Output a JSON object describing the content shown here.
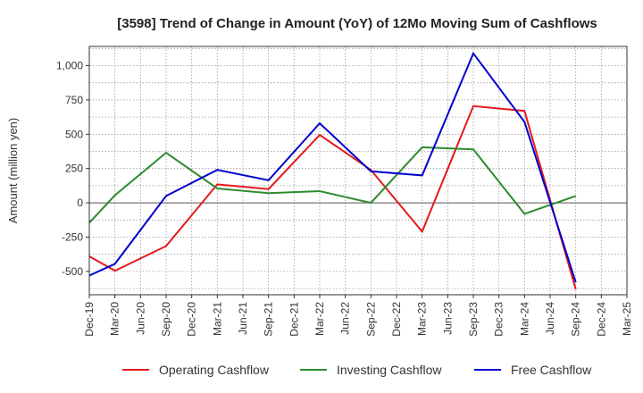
{
  "chart_data": {
    "type": "line",
    "title": "[3598]  Trend of Change in Amount (YoY) of 12Mo Moving Sum of Cashflows",
    "xlabel": "",
    "ylabel": "Amount (million yen)",
    "ylim": [
      -670,
      1140
    ],
    "yticks": [
      -500,
      -250,
      0,
      250,
      500,
      750,
      1000
    ],
    "ytick_labels": [
      "-500",
      "-250",
      "0",
      "250",
      "500",
      "750",
      "1,000"
    ],
    "categories": [
      "Dec-19",
      "Mar-20",
      "Jun-20",
      "Sep-20",
      "Dec-20",
      "Mar-21",
      "Jun-21",
      "Sep-21",
      "Dec-21",
      "Mar-22",
      "Jun-22",
      "Sep-22",
      "Dec-22",
      "Mar-23",
      "Jun-23",
      "Sep-23",
      "Dec-23",
      "Mar-24",
      "Jun-24",
      "Sep-24",
      "Dec-24",
      "Mar-25"
    ],
    "grid": true,
    "legend_position": "bottom",
    "series": [
      {
        "name": "Operating Cashflow",
        "color": "#e31a1c",
        "values": [
          -390,
          -495,
          null,
          -315,
          null,
          135,
          null,
          100,
          null,
          495,
          null,
          240,
          null,
          -210,
          null,
          705,
          null,
          670,
          null,
          -630,
          null,
          null
        ]
      },
      {
        "name": "Investing Cashflow",
        "color": "#2e8b2e",
        "values": [
          -145,
          55,
          null,
          365,
          null,
          105,
          null,
          70,
          null,
          85,
          null,
          0,
          null,
          405,
          null,
          390,
          null,
          -80,
          null,
          50,
          null,
          null
        ]
      },
      {
        "name": "Free Cashflow",
        "color": "#0000cc",
        "values": [
          -530,
          -445,
          null,
          50,
          null,
          240,
          null,
          165,
          null,
          580,
          null,
          230,
          null,
          200,
          null,
          1090,
          null,
          590,
          null,
          -580,
          null,
          null
        ]
      }
    ]
  }
}
